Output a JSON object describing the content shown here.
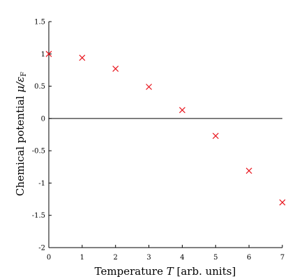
{
  "chart_data": {
    "type": "scatter",
    "xlabel": "Temperature T [arb. units]",
    "ylabel": "Chemical potential μ/ε_F",
    "xlabel_parts": {
      "before": "Temperature ",
      "var": "T",
      "after": " [arb. units]"
    },
    "ylabel_parts": {
      "before": "Chemical potential ",
      "var": "μ/ε",
      "sub": "F"
    },
    "xlim": [
      0,
      7
    ],
    "ylim": [
      -2,
      1.5
    ],
    "x_ticks": [
      0,
      1,
      2,
      3,
      4,
      5,
      6,
      7
    ],
    "x_tick_labels": [
      "0",
      "1",
      "2",
      "3",
      "4",
      "5",
      "6",
      "7"
    ],
    "y_ticks": [
      -2,
      -1.5,
      -1,
      -0.5,
      0,
      0.5,
      1,
      1.5
    ],
    "y_tick_labels": [
      "-2",
      "-1.5",
      "-1",
      "-0.5",
      "0",
      "0.5",
      "1",
      "1.5"
    ],
    "reference_line_y": 0,
    "grid": false,
    "marker": "x",
    "marker_color": "#e8141c",
    "series": [
      {
        "x": [
          0,
          1,
          2,
          3,
          4,
          5,
          6,
          7
        ],
        "y": [
          1.0,
          0.94,
          0.77,
          0.49,
          0.13,
          -0.27,
          -0.81,
          -1.3
        ]
      }
    ]
  }
}
